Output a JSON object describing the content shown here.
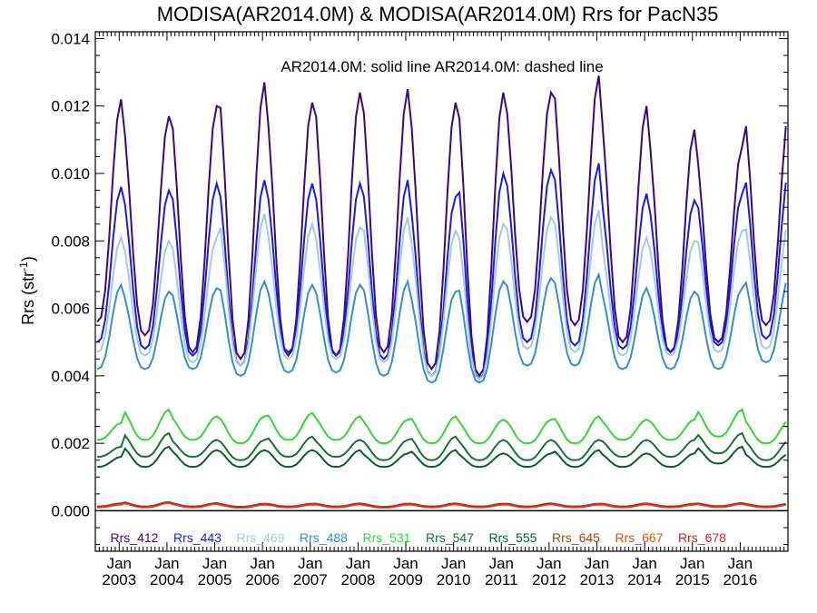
{
  "chart_data": {
    "type": "line",
    "title": "MODISA(AR2014.0M) & MODISA(AR2014.0M)  Rrs for PacN35",
    "annotation": "AR2014.0M: solid line   AR2014.0M: dashed line",
    "ylabel": "Rrs (str",
    "ylabel_sup": "-1",
    "ylabel_close": ")",
    "xlabel": "",
    "xlim": [
      2002.5,
      2017.0
    ],
    "ylim": [
      -0.0012,
      0.0142
    ],
    "yticks": [
      "0.000",
      "0.002",
      "0.004",
      "0.006",
      "0.008",
      "0.010",
      "0.012",
      "0.014"
    ],
    "ytick_values": [
      0.0,
      0.002,
      0.004,
      0.006,
      0.008,
      0.01,
      0.012,
      0.014
    ],
    "xticks": [
      {
        "month": "Jan",
        "year": "2003",
        "x": 2003.0
      },
      {
        "month": "Jan",
        "year": "2004",
        "x": 2004.0
      },
      {
        "month": "Jan",
        "year": "2005",
        "x": 2005.0
      },
      {
        "month": "Jan",
        "year": "2006",
        "x": 2006.0
      },
      {
        "month": "Jan",
        "year": "2007",
        "x": 2007.0
      },
      {
        "month": "Jan",
        "year": "2008",
        "x": 2008.0
      },
      {
        "month": "Jan",
        "year": "2009",
        "x": 2009.0
      },
      {
        "month": "Jan",
        "year": "2010",
        "x": 2010.0
      },
      {
        "month": "Jan",
        "year": "2011",
        "x": 2011.0
      },
      {
        "month": "Jan",
        "year": "2012",
        "x": 2012.0
      },
      {
        "month": "Jan",
        "year": "2013",
        "x": 2013.0
      },
      {
        "month": "Jan",
        "year": "2014",
        "x": 2014.0
      },
      {
        "month": "Jan",
        "year": "2015",
        "x": 2015.0
      },
      {
        "month": "Jan",
        "year": "2016",
        "x": 2016.0
      }
    ],
    "grid": false,
    "zero_line": true,
    "legend_placement": "bottom",
    "series": [
      {
        "name": "Rrs_412",
        "color": "#3a0a78",
        "peaks": [
          0.0122,
          0.0117,
          0.012,
          0.0127,
          0.0121,
          0.0124,
          0.0125,
          0.0121,
          0.0124,
          0.0124,
          0.0129,
          0.012,
          0.0113,
          0.0108,
          0.012
        ],
        "troughs": [
          0.0056,
          0.0052,
          0.0047,
          0.0045,
          0.0046,
          0.0046,
          0.0047,
          0.0042,
          0.004,
          0.0056,
          0.0055,
          0.005,
          0.0047,
          0.005,
          0.0055
        ]
      },
      {
        "name": "Rrs_443",
        "color": "#1c1ce0",
        "peaks": [
          0.0096,
          0.0095,
          0.0097,
          0.0098,
          0.0097,
          0.0097,
          0.0098,
          0.0093,
          0.01,
          0.0101,
          0.0103,
          0.0094,
          0.0092,
          0.0094,
          0.0102
        ],
        "troughs": [
          0.005,
          0.0048,
          0.0046,
          0.0043,
          0.0047,
          0.0046,
          0.0045,
          0.004,
          0.0039,
          0.005,
          0.0049,
          0.0048,
          0.0047,
          0.0049,
          0.0051
        ]
      },
      {
        "name": "Rrs_469",
        "color": "#a8c8e4",
        "peaks": [
          0.0081,
          0.008,
          0.0081,
          0.0088,
          0.0085,
          0.0084,
          0.0087,
          0.0083,
          0.0085,
          0.0087,
          0.0089,
          0.0081,
          0.008,
          0.0083,
          0.0087
        ],
        "troughs": [
          0.0047,
          0.0046,
          0.0044,
          0.0043,
          0.0045,
          0.0045,
          0.0044,
          0.004,
          0.0039,
          0.0048,
          0.0047,
          0.0046,
          0.0046,
          0.0047,
          0.0048
        ]
      },
      {
        "name": "Rrs_488",
        "color": "#3a8fc8",
        "peaks": [
          0.0067,
          0.0065,
          0.0066,
          0.0068,
          0.0067,
          0.0067,
          0.0068,
          0.0065,
          0.0068,
          0.0069,
          0.007,
          0.0066,
          0.0065,
          0.0066,
          0.007
        ],
        "troughs": [
          0.0042,
          0.0042,
          0.0042,
          0.004,
          0.0041,
          0.0041,
          0.004,
          0.0038,
          0.0038,
          0.0043,
          0.0043,
          0.0042,
          0.0042,
          0.0042,
          0.0044
        ]
      },
      {
        "name": "Rrs_531",
        "color": "#3cd23c",
        "peaks": [
          0.0026,
          0.003,
          0.0028,
          0.0028,
          0.0029,
          0.0028,
          0.0027,
          0.0028,
          0.0027,
          0.0027,
          0.0028,
          0.0027,
          0.0027,
          0.003,
          0.0027
        ],
        "troughs": [
          0.0021,
          0.0021,
          0.0021,
          0.002,
          0.0021,
          0.0021,
          0.002,
          0.002,
          0.002,
          0.002,
          0.002,
          0.0021,
          0.0021,
          0.0022,
          0.002
        ]
      },
      {
        "name": "Rrs_547",
        "color": "#1b6e36",
        "peaks": [
          0.0019,
          0.0023,
          0.0021,
          0.0021,
          0.0022,
          0.0021,
          0.0021,
          0.0022,
          0.0021,
          0.0021,
          0.0021,
          0.0021,
          0.0021,
          0.0023,
          0.0021
        ],
        "troughs": [
          0.0016,
          0.0016,
          0.0016,
          0.0015,
          0.0016,
          0.0016,
          0.0015,
          0.0015,
          0.0015,
          0.0015,
          0.0015,
          0.0016,
          0.0016,
          0.0017,
          0.0015
        ]
      },
      {
        "name": "Rrs_555",
        "color": "#0d5c30",
        "peaks": [
          0.0016,
          0.0019,
          0.0018,
          0.0018,
          0.0018,
          0.0018,
          0.0017,
          0.0018,
          0.0017,
          0.0017,
          0.0018,
          0.0017,
          0.0017,
          0.0019,
          0.0017
        ],
        "troughs": [
          0.0013,
          0.0013,
          0.0013,
          0.0013,
          0.0013,
          0.0013,
          0.0013,
          0.0013,
          0.0013,
          0.0013,
          0.0013,
          0.0013,
          0.0013,
          0.0014,
          0.0013
        ]
      },
      {
        "name": "Rrs_645",
        "color": "#9a4a1a",
        "peaks": [
          0.0002,
          0.00025,
          0.00022,
          0.0002,
          0.0002,
          0.00021,
          0.0002,
          0.00021,
          0.0002,
          0.00021,
          0.0002,
          0.00021,
          0.0002,
          0.00022,
          0.0002
        ],
        "troughs": [
          0.00012,
          0.00012,
          0.00012,
          0.00011,
          0.00012,
          0.00012,
          0.00011,
          0.00012,
          0.00012,
          0.00012,
          0.00012,
          0.00012,
          0.00012,
          0.00013,
          0.00012
        ]
      },
      {
        "name": "Rrs_667",
        "color": "#d2541e",
        "peaks": [
          0.00018,
          0.00023,
          0.0002,
          0.00018,
          0.00018,
          0.00019,
          0.00018,
          0.00019,
          0.00018,
          0.00019,
          0.00018,
          0.00019,
          0.00018,
          0.0002,
          0.00018
        ],
        "troughs": [
          0.0001,
          0.0001,
          0.0001,
          9e-05,
          0.0001,
          0.0001,
          9e-05,
          0.0001,
          0.0001,
          0.0001,
          0.0001,
          0.0001,
          0.0001,
          0.00011,
          0.0001
        ]
      },
      {
        "name": "Rrs_678",
        "color": "#c42a2a",
        "peaks": [
          0.00022,
          0.00026,
          0.00023,
          0.00021,
          0.00021,
          0.00022,
          0.00021,
          0.00022,
          0.00021,
          0.00022,
          0.00021,
          0.00022,
          0.00021,
          0.00023,
          0.00021
        ],
        "troughs": [
          0.00013,
          0.00013,
          0.00013,
          0.00012,
          0.00013,
          0.00013,
          0.00012,
          0.00013,
          0.00013,
          0.00013,
          0.00013,
          0.00013,
          0.00013,
          0.00014,
          0.00013
        ]
      }
    ]
  }
}
